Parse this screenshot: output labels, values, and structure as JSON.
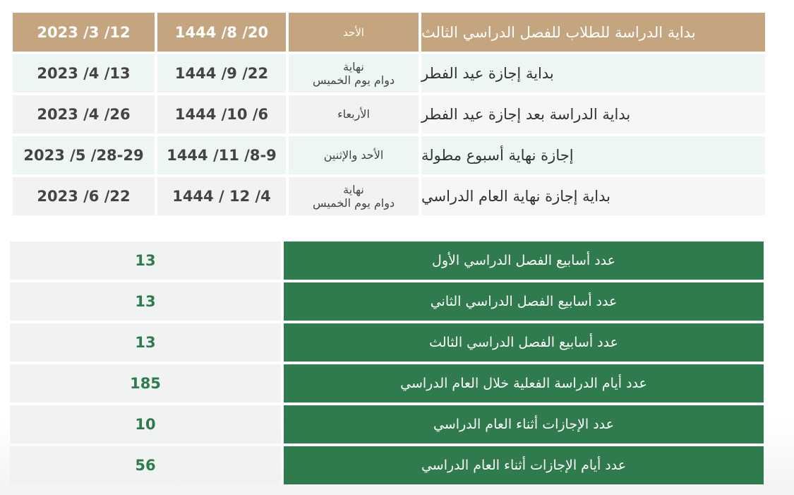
{
  "calendar": {
    "header": {
      "event": "بداية الدراسة للطلاب للفصل الدراسي الثالث",
      "day": "الأحد",
      "hijri": "20/ 8/ 1444",
      "gregorian": "12/ 3/ 2023"
    },
    "rows": [
      {
        "event": "بداية إجازة عيد الفطر",
        "day_line1": "نهاية",
        "day_line2": "دوام يوم الخميس",
        "hijri": "22/ 9/ 1444",
        "gregorian": "13/ 4/ 2023"
      },
      {
        "event": "بداية الدراسة بعد إجازة عيد الفطر",
        "day_line1": "الأربعاء",
        "day_line2": "",
        "hijri": "6/ 10/ 1444",
        "gregorian": "26/ 4/ 2023"
      },
      {
        "event": "إجازة نهاية أسبوع مطولة",
        "day_line1": "الأحد والإثنين",
        "day_line2": "",
        "hijri": "8-9/ 11/ 1444",
        "gregorian": "28-29/ 5/ 2023"
      },
      {
        "event": "بداية إجازة نهاية العام الدراسي",
        "day_line1": "نهاية",
        "day_line2": "دوام يوم الخميس",
        "hijri": "4/ 12 / 1444",
        "gregorian": "22/ 6/ 2023"
      }
    ]
  },
  "stats": [
    {
      "label": "عدد أسابيع الفصل الدراسي الأول",
      "value": "13"
    },
    {
      "label": "عدد أسابيع الفصل الدراسي الثاني",
      "value": "13"
    },
    {
      "label": "عدد أسابيع الفصل الدراسي الثالث",
      "value": "13"
    },
    {
      "label": "عدد أيام الدراسة الفعلية خلال العام الدراسي",
      "value": "185"
    },
    {
      "label": "عدد الإجازات أثناء العام الدراسي",
      "value": "10"
    },
    {
      "label": "عدد أيام الإجازات أثناء العام الدراسي",
      "value": "56"
    }
  ]
}
